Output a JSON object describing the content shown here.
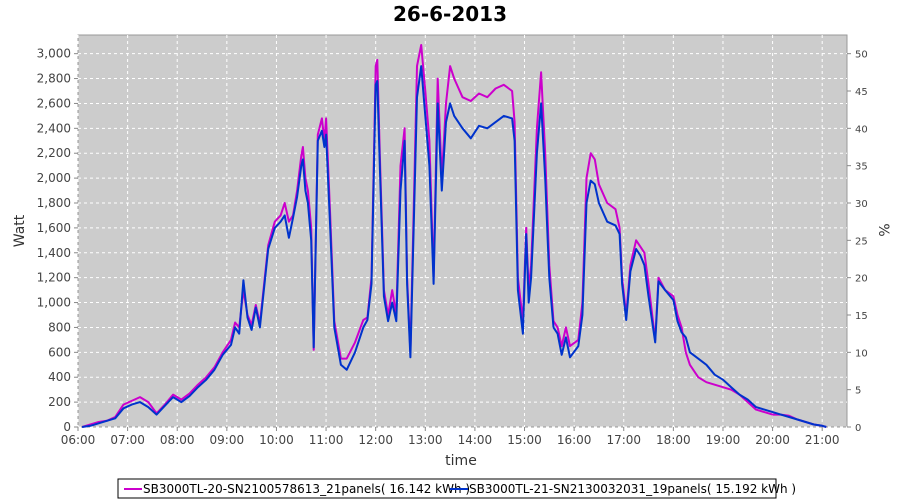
{
  "chart_data": {
    "type": "line",
    "title": "26-6-2013",
    "xlabel": "time",
    "ylabel": "Watt",
    "y2label": "%",
    "xlim": [
      "06:00",
      "21:30"
    ],
    "ylim": [
      0,
      3150
    ],
    "y2lim": [
      0,
      52.5
    ],
    "x_ticks": [
      "06:00",
      "07:00",
      "08:00",
      "09:00",
      "10:00",
      "11:00",
      "12:00",
      "13:00",
      "14:00",
      "15:00",
      "16:00",
      "17:00",
      "18:00",
      "19:00",
      "20:00",
      "21:00"
    ],
    "y_ticks": [
      "0",
      "200",
      "400",
      "600",
      "800",
      "1,000",
      "1,200",
      "1,400",
      "1,600",
      "1,800",
      "2,000",
      "2,200",
      "2,400",
      "2,600",
      "2,800",
      "3,000"
    ],
    "y2_ticks": [
      "0",
      "5",
      "10",
      "15",
      "20",
      "25",
      "30",
      "35",
      "40",
      "45",
      "50"
    ],
    "grid": true,
    "legend_position": "bottom",
    "series": [
      {
        "name": "SB3000TL-20-SN2100578613_21panels( 16.142 kWh )",
        "color": "#cc00cc",
        "points": [
          [
            "06:05",
            0
          ],
          [
            "06:15",
            20
          ],
          [
            "06:25",
            40
          ],
          [
            "06:35",
            50
          ],
          [
            "06:45",
            80
          ],
          [
            "06:55",
            180
          ],
          [
            "07:05",
            210
          ],
          [
            "07:15",
            240
          ],
          [
            "07:25",
            200
          ],
          [
            "07:35",
            110
          ],
          [
            "07:45",
            180
          ],
          [
            "07:55",
            260
          ],
          [
            "08:05",
            220
          ],
          [
            "08:15",
            270
          ],
          [
            "08:25",
            340
          ],
          [
            "08:35",
            400
          ],
          [
            "08:45",
            480
          ],
          [
            "08:55",
            600
          ],
          [
            "09:05",
            700
          ],
          [
            "09:10",
            840
          ],
          [
            "09:15",
            800
          ],
          [
            "09:20",
            1100
          ],
          [
            "09:25",
            900
          ],
          [
            "09:30",
            820
          ],
          [
            "09:35",
            980
          ],
          [
            "09:40",
            830
          ],
          [
            "09:50",
            1460
          ],
          [
            "09:58",
            1650
          ],
          [
            "10:05",
            1700
          ],
          [
            "10:10",
            1800
          ],
          [
            "10:15",
            1650
          ],
          [
            "10:20",
            1700
          ],
          [
            "10:25",
            1900
          ],
          [
            "10:30",
            2180
          ],
          [
            "10:32",
            2250
          ],
          [
            "10:35",
            2000
          ],
          [
            "10:38",
            1900
          ],
          [
            "10:42",
            1600
          ],
          [
            "10:45",
            620
          ],
          [
            "10:50",
            2350
          ],
          [
            "10:55",
            2480
          ],
          [
            "10:58",
            2300
          ],
          [
            "11:00",
            2480
          ],
          [
            "11:05",
            1700
          ],
          [
            "11:10",
            850
          ],
          [
            "11:18",
            550
          ],
          [
            "11:25",
            550
          ],
          [
            "11:35",
            680
          ],
          [
            "11:45",
            860
          ],
          [
            "11:50",
            880
          ],
          [
            "11:55",
            1200
          ],
          [
            "12:00",
            2900
          ],
          [
            "12:02",
            2950
          ],
          [
            "12:05",
            2200
          ],
          [
            "12:10",
            1100
          ],
          [
            "12:15",
            900
          ],
          [
            "12:20",
            1100
          ],
          [
            "12:25",
            900
          ],
          [
            "12:30",
            2100
          ],
          [
            "12:35",
            2400
          ],
          [
            "12:38",
            1200
          ],
          [
            "12:42",
            600
          ],
          [
            "12:50",
            2900
          ],
          [
            "12:55",
            3070
          ],
          [
            "13:00",
            2700
          ],
          [
            "13:05",
            2300
          ],
          [
            "13:10",
            1200
          ],
          [
            "13:15",
            2800
          ],
          [
            "13:20",
            2000
          ],
          [
            "13:25",
            2600
          ],
          [
            "13:30",
            2900
          ],
          [
            "13:35",
            2800
          ],
          [
            "13:45",
            2650
          ],
          [
            "13:55",
            2620
          ],
          [
            "14:05",
            2680
          ],
          [
            "14:15",
            2650
          ],
          [
            "14:25",
            2720
          ],
          [
            "14:35",
            2750
          ],
          [
            "14:45",
            2700
          ],
          [
            "14:48",
            2450
          ],
          [
            "14:52",
            1200
          ],
          [
            "14:58",
            850
          ],
          [
            "15:02",
            1600
          ],
          [
            "15:05",
            1100
          ],
          [
            "15:08",
            1300
          ],
          [
            "15:15",
            2400
          ],
          [
            "15:20",
            2850
          ],
          [
            "15:25",
            2200
          ],
          [
            "15:28",
            1650
          ],
          [
            "15:30",
            1300
          ],
          [
            "15:35",
            850
          ],
          [
            "15:40",
            800
          ],
          [
            "15:45",
            650
          ],
          [
            "15:50",
            800
          ],
          [
            "15:55",
            650
          ],
          [
            "16:05",
            700
          ],
          [
            "16:10",
            1000
          ],
          [
            "16:15",
            2000
          ],
          [
            "16:20",
            2200
          ],
          [
            "16:25",
            2150
          ],
          [
            "16:30",
            1950
          ],
          [
            "16:40",
            1800
          ],
          [
            "16:50",
            1750
          ],
          [
            "16:55",
            1600
          ],
          [
            "16:58",
            1200
          ],
          [
            "17:03",
            900
          ],
          [
            "17:08",
            1300
          ],
          [
            "17:15",
            1500
          ],
          [
            "17:20",
            1450
          ],
          [
            "17:25",
            1400
          ],
          [
            "17:30",
            1150
          ],
          [
            "17:38",
            700
          ],
          [
            "17:42",
            1200
          ],
          [
            "17:50",
            1100
          ],
          [
            "18:00",
            1050
          ],
          [
            "18:05",
            900
          ],
          [
            "18:10",
            800
          ],
          [
            "18:15",
            600
          ],
          [
            "18:20",
            500
          ],
          [
            "18:30",
            400
          ],
          [
            "18:40",
            360
          ],
          [
            "18:50",
            340
          ],
          [
            "19:00",
            320
          ],
          [
            "19:10",
            300
          ],
          [
            "19:20",
            260
          ],
          [
            "19:30",
            200
          ],
          [
            "19:40",
            140
          ],
          [
            "19:50",
            120
          ],
          [
            "20:00",
            100
          ],
          [
            "20:10",
            100
          ],
          [
            "20:20",
            90
          ],
          [
            "20:30",
            60
          ],
          [
            "20:40",
            40
          ],
          [
            "20:50",
            20
          ],
          [
            "21:00",
            10
          ],
          [
            "21:05",
            0
          ]
        ]
      },
      {
        "name": "SB3000TL-21-SN2130032031_19panels( 15.192 kWh )",
        "color": "#0033cc",
        "points": [
          [
            "06:05",
            0
          ],
          [
            "06:15",
            10
          ],
          [
            "06:25",
            30
          ],
          [
            "06:35",
            50
          ],
          [
            "06:45",
            70
          ],
          [
            "06:55",
            150
          ],
          [
            "07:05",
            180
          ],
          [
            "07:15",
            200
          ],
          [
            "07:25",
            160
          ],
          [
            "07:35",
            100
          ],
          [
            "07:45",
            170
          ],
          [
            "07:55",
            240
          ],
          [
            "08:05",
            200
          ],
          [
            "08:15",
            250
          ],
          [
            "08:25",
            320
          ],
          [
            "08:35",
            380
          ],
          [
            "08:45",
            460
          ],
          [
            "08:55",
            580
          ],
          [
            "09:05",
            660
          ],
          [
            "09:10",
            800
          ],
          [
            "09:15",
            750
          ],
          [
            "09:20",
            1180
          ],
          [
            "09:25",
            880
          ],
          [
            "09:30",
            780
          ],
          [
            "09:35",
            960
          ],
          [
            "09:40",
            800
          ],
          [
            "09:50",
            1430
          ],
          [
            "09:58",
            1600
          ],
          [
            "10:05",
            1650
          ],
          [
            "10:10",
            1700
          ],
          [
            "10:15",
            1520
          ],
          [
            "10:20",
            1680
          ],
          [
            "10:25",
            1850
          ],
          [
            "10:30",
            2100
          ],
          [
            "10:32",
            2150
          ],
          [
            "10:35",
            1900
          ],
          [
            "10:38",
            1800
          ],
          [
            "10:42",
            1500
          ],
          [
            "10:45",
            640
          ],
          [
            "10:50",
            2300
          ],
          [
            "10:55",
            2380
          ],
          [
            "10:58",
            2250
          ],
          [
            "11:00",
            2350
          ],
          [
            "11:05",
            1600
          ],
          [
            "11:10",
            800
          ],
          [
            "11:18",
            500
          ],
          [
            "11:25",
            460
          ],
          [
            "11:35",
            600
          ],
          [
            "11:45",
            800
          ],
          [
            "11:50",
            860
          ],
          [
            "11:55",
            1150
          ],
          [
            "12:00",
            2750
          ],
          [
            "12:02",
            2780
          ],
          [
            "12:05",
            2100
          ],
          [
            "12:10",
            1050
          ],
          [
            "12:15",
            850
          ],
          [
            "12:20",
            1000
          ],
          [
            "12:25",
            850
          ],
          [
            "12:30",
            1900
          ],
          [
            "12:35",
            2300
          ],
          [
            "12:38",
            1150
          ],
          [
            "12:42",
            560
          ],
          [
            "12:50",
            2650
          ],
          [
            "12:55",
            2900
          ],
          [
            "13:00",
            2500
          ],
          [
            "13:05",
            2100
          ],
          [
            "13:10",
            1150
          ],
          [
            "13:15",
            2600
          ],
          [
            "13:20",
            1900
          ],
          [
            "13:25",
            2450
          ],
          [
            "13:30",
            2600
          ],
          [
            "13:35",
            2500
          ],
          [
            "13:45",
            2400
          ],
          [
            "13:55",
            2320
          ],
          [
            "14:05",
            2420
          ],
          [
            "14:15",
            2400
          ],
          [
            "14:25",
            2450
          ],
          [
            "14:35",
            2500
          ],
          [
            "14:45",
            2480
          ],
          [
            "14:48",
            2300
          ],
          [
            "14:52",
            1100
          ],
          [
            "14:58",
            750
          ],
          [
            "15:02",
            1550
          ],
          [
            "15:05",
            1000
          ],
          [
            "15:08",
            1200
          ],
          [
            "15:15",
            2200
          ],
          [
            "15:20",
            2600
          ],
          [
            "15:25",
            2000
          ],
          [
            "15:28",
            1500
          ],
          [
            "15:30",
            1200
          ],
          [
            "15:35",
            800
          ],
          [
            "15:40",
            750
          ],
          [
            "15:45",
            580
          ],
          [
            "15:50",
            720
          ],
          [
            "15:55",
            560
          ],
          [
            "16:05",
            650
          ],
          [
            "16:10",
            900
          ],
          [
            "16:15",
            1800
          ],
          [
            "16:20",
            1980
          ],
          [
            "16:25",
            1950
          ],
          [
            "16:30",
            1800
          ],
          [
            "16:40",
            1650
          ],
          [
            "16:50",
            1620
          ],
          [
            "16:55",
            1550
          ],
          [
            "16:58",
            1150
          ],
          [
            "17:03",
            860
          ],
          [
            "17:08",
            1250
          ],
          [
            "17:15",
            1430
          ],
          [
            "17:20",
            1380
          ],
          [
            "17:25",
            1300
          ],
          [
            "17:30",
            1050
          ],
          [
            "17:38",
            680
          ],
          [
            "17:42",
            1170
          ],
          [
            "17:50",
            1100
          ],
          [
            "18:00",
            1020
          ],
          [
            "18:05",
            850
          ],
          [
            "18:10",
            760
          ],
          [
            "18:15",
            720
          ],
          [
            "18:20",
            600
          ],
          [
            "18:30",
            550
          ],
          [
            "18:40",
            500
          ],
          [
            "18:50",
            420
          ],
          [
            "19:00",
            380
          ],
          [
            "19:10",
            320
          ],
          [
            "19:20",
            260
          ],
          [
            "19:30",
            220
          ],
          [
            "19:40",
            160
          ],
          [
            "19:50",
            140
          ],
          [
            "20:00",
            120
          ],
          [
            "20:10",
            100
          ],
          [
            "20:20",
            80
          ],
          [
            "20:30",
            60
          ],
          [
            "20:40",
            40
          ],
          [
            "20:50",
            20
          ],
          [
            "21:00",
            10
          ],
          [
            "21:05",
            0
          ]
        ]
      }
    ]
  }
}
